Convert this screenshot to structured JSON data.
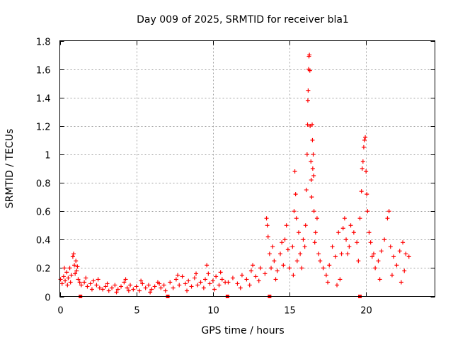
{
  "chart_data": {
    "type": "scatter",
    "title": "Day 009 of 2025, SRMTID for receiver bla1",
    "xlabel": "GPS time / hours",
    "ylabel": "SRMTID / TECUs",
    "xlim": [
      0,
      24.5
    ],
    "ylim": [
      0,
      1.8
    ],
    "xticks": [
      0,
      5,
      10,
      15,
      20
    ],
    "xtick_labels": [
      "0",
      "5",
      "10",
      "15",
      "20"
    ],
    "yticks": [
      0,
      0.2,
      0.4,
      0.6,
      0.8,
      1,
      1.2,
      1.4,
      1.6,
      1.8
    ],
    "ytick_labels": [
      "0",
      "0.2",
      "0.4",
      "0.6",
      "0.8",
      "1",
      "1.2",
      "1.4",
      "1.6",
      "1.8"
    ],
    "grid": true,
    "marker": "+",
    "marker_color": "#ff0000",
    "zero_markers_x": [
      1.35,
      7.05,
      10.95,
      13.7,
      19.6
    ],
    "series": [
      {
        "name": "SRMTID",
        "points": [
          [
            0.05,
            0.12
          ],
          [
            0.15,
            0.09
          ],
          [
            0.25,
            0.14
          ],
          [
            0.35,
            0.11
          ],
          [
            0.45,
            0.17
          ],
          [
            0.55,
            0.13
          ],
          [
            0.65,
            0.2
          ],
          [
            0.75,
            0.15
          ],
          [
            0.85,
            0.28
          ],
          [
            0.9,
            0.3
          ],
          [
            0.95,
            0.22
          ],
          [
            1.05,
            0.25
          ],
          [
            1.1,
            0.18
          ],
          [
            1.2,
            0.12
          ],
          [
            1.3,
            0.1
          ],
          [
            0.3,
            0.2
          ],
          [
            0.5,
            0.08
          ],
          [
            0.7,
            0.1
          ],
          [
            1.0,
            0.16
          ],
          [
            1.15,
            0.21
          ],
          [
            1.4,
            0.08
          ],
          [
            1.6,
            0.1
          ],
          [
            1.8,
            0.07
          ],
          [
            2.0,
            0.09
          ],
          [
            2.2,
            0.11
          ],
          [
            2.4,
            0.08
          ],
          [
            2.6,
            0.06
          ],
          [
            1.7,
            0.13
          ],
          [
            2.1,
            0.05
          ],
          [
            2.5,
            0.12
          ],
          [
            2.8,
            0.05
          ],
          [
            3.0,
            0.07
          ],
          [
            3.2,
            0.04
          ],
          [
            3.4,
            0.06
          ],
          [
            3.6,
            0.08
          ],
          [
            3.8,
            0.05
          ],
          [
            4.0,
            0.07
          ],
          [
            4.2,
            0.1
          ],
          [
            4.4,
            0.06
          ],
          [
            4.6,
            0.08
          ],
          [
            4.8,
            0.05
          ],
          [
            3.1,
            0.09
          ],
          [
            3.7,
            0.03
          ],
          [
            4.3,
            0.12
          ],
          [
            4.5,
            0.04
          ],
          [
            5.0,
            0.07
          ],
          [
            5.2,
            0.04
          ],
          [
            5.4,
            0.09
          ],
          [
            5.6,
            0.06
          ],
          [
            5.8,
            0.08
          ],
          [
            6.0,
            0.05
          ],
          [
            6.2,
            0.07
          ],
          [
            6.4,
            0.1
          ],
          [
            6.6,
            0.06
          ],
          [
            6.8,
            0.08
          ],
          [
            5.3,
            0.11
          ],
          [
            5.9,
            0.03
          ],
          [
            6.5,
            0.09
          ],
          [
            6.9,
            0.04
          ],
          [
            7.2,
            0.1
          ],
          [
            7.4,
            0.06
          ],
          [
            7.6,
            0.12
          ],
          [
            7.8,
            0.08
          ],
          [
            8.0,
            0.14
          ],
          [
            8.2,
            0.09
          ],
          [
            8.4,
            0.11
          ],
          [
            8.6,
            0.07
          ],
          [
            8.8,
            0.13
          ],
          [
            9.0,
            0.08
          ],
          [
            9.2,
            0.1
          ],
          [
            9.4,
            0.06
          ],
          [
            7.7,
            0.15
          ],
          [
            8.3,
            0.04
          ],
          [
            8.9,
            0.16
          ],
          [
            9.5,
            0.12
          ],
          [
            9.6,
            0.22
          ],
          [
            9.7,
            0.16
          ],
          [
            9.8,
            0.09
          ],
          [
            10.0,
            0.11
          ],
          [
            10.2,
            0.14
          ],
          [
            10.4,
            0.08
          ],
          [
            10.6,
            0.12
          ],
          [
            10.8,
            0.1
          ],
          [
            10.1,
            0.05
          ],
          [
            10.5,
            0.17
          ],
          [
            11.0,
            0.1
          ],
          [
            11.3,
            0.13
          ],
          [
            11.6,
            0.09
          ],
          [
            11.9,
            0.15
          ],
          [
            12.2,
            0.12
          ],
          [
            12.5,
            0.18
          ],
          [
            12.8,
            0.14
          ],
          [
            13.1,
            0.2
          ],
          [
            13.4,
            0.16
          ],
          [
            11.8,
            0.06
          ],
          [
            12.4,
            0.08
          ],
          [
            13.0,
            0.11
          ],
          [
            12.6,
            0.22
          ],
          [
            13.5,
            0.55
          ],
          [
            13.55,
            0.5
          ],
          [
            13.6,
            0.42
          ],
          [
            13.7,
            0.3
          ],
          [
            13.8,
            0.2
          ],
          [
            13.9,
            0.35
          ],
          [
            14.0,
            0.25
          ],
          [
            14.2,
            0.18
          ],
          [
            14.4,
            0.3
          ],
          [
            14.6,
            0.22
          ],
          [
            14.7,
            0.4
          ],
          [
            14.8,
            0.5
          ],
          [
            14.9,
            0.33
          ],
          [
            15.0,
            0.2
          ],
          [
            14.1,
            0.12
          ],
          [
            14.5,
            0.38
          ],
          [
            15.2,
            0.35
          ],
          [
            15.3,
            0.6
          ],
          [
            15.35,
            0.88
          ],
          [
            15.4,
            0.72
          ],
          [
            15.45,
            0.55
          ],
          [
            15.6,
            0.45
          ],
          [
            15.7,
            0.3
          ],
          [
            15.8,
            0.2
          ],
          [
            15.9,
            0.4
          ],
          [
            16.0,
            0.35
          ],
          [
            15.5,
            0.25
          ],
          [
            15.25,
            0.15
          ],
          [
            16.05,
            0.5
          ],
          [
            16.1,
            0.75
          ],
          [
            16.15,
            1.0
          ],
          [
            16.18,
            1.21
          ],
          [
            16.2,
            1.38
          ],
          [
            16.22,
            1.45
          ],
          [
            16.25,
            1.6
          ],
          [
            16.27,
            1.69
          ],
          [
            16.3,
            1.7
          ],
          [
            16.33,
            1.59
          ],
          [
            16.35,
            1.2
          ],
          [
            16.4,
            0.95
          ],
          [
            16.42,
            0.82
          ],
          [
            16.45,
            0.7
          ],
          [
            16.48,
            1.21
          ],
          [
            16.5,
            1.1
          ],
          [
            16.52,
            0.9
          ],
          [
            16.55,
            1.0
          ],
          [
            16.58,
            0.85
          ],
          [
            16.6,
            0.6
          ],
          [
            16.7,
            0.45
          ],
          [
            16.8,
            0.55
          ],
          [
            16.9,
            0.3
          ],
          [
            17.0,
            0.25
          ],
          [
            16.65,
            0.38
          ],
          [
            17.2,
            0.2
          ],
          [
            17.4,
            0.15
          ],
          [
            17.6,
            0.22
          ],
          [
            17.8,
            0.35
          ],
          [
            18.0,
            0.28
          ],
          [
            18.2,
            0.45
          ],
          [
            18.3,
            0.12
          ],
          [
            18.4,
            0.3
          ],
          [
            18.5,
            0.48
          ],
          [
            18.6,
            0.55
          ],
          [
            18.7,
            0.4
          ],
          [
            18.8,
            0.3
          ],
          [
            18.9,
            0.35
          ],
          [
            19.0,
            0.5
          ],
          [
            19.2,
            0.45
          ],
          [
            19.4,
            0.38
          ],
          [
            19.5,
            0.25
          ],
          [
            17.5,
            0.1
          ],
          [
            18.1,
            0.08
          ],
          [
            19.6,
            0.55
          ],
          [
            19.7,
            0.74
          ],
          [
            19.75,
            0.9
          ],
          [
            19.8,
            0.95
          ],
          [
            19.85,
            1.05
          ],
          [
            19.9,
            1.1
          ],
          [
            19.95,
            1.12
          ],
          [
            20.0,
            0.88
          ],
          [
            20.05,
            0.72
          ],
          [
            20.1,
            0.6
          ],
          [
            20.2,
            0.45
          ],
          [
            20.3,
            0.38
          ],
          [
            20.4,
            0.28
          ],
          [
            20.5,
            0.3
          ],
          [
            20.6,
            0.2
          ],
          [
            20.8,
            0.25
          ],
          [
            21.0,
            0.32
          ],
          [
            21.2,
            0.4
          ],
          [
            21.4,
            0.55
          ],
          [
            21.5,
            0.6
          ],
          [
            21.6,
            0.35
          ],
          [
            21.8,
            0.28
          ],
          [
            22.0,
            0.22
          ],
          [
            22.2,
            0.32
          ],
          [
            22.4,
            0.38
          ],
          [
            22.6,
            0.3
          ],
          [
            22.8,
            0.28
          ],
          [
            20.9,
            0.12
          ],
          [
            21.7,
            0.15
          ],
          [
            22.3,
            0.1
          ],
          [
            22.5,
            0.18
          ]
        ]
      }
    ]
  }
}
